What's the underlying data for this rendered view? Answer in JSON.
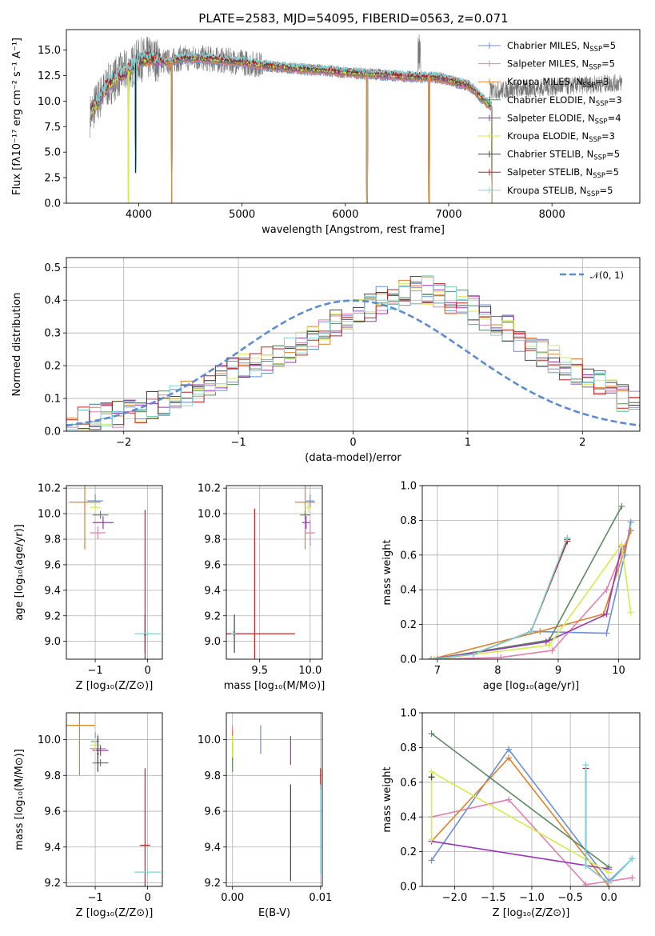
{
  "figure": {
    "title": "PLATE=2583, MJD=54095, FIBERID=0563, z=0.071"
  },
  "colors": {
    "chabrier_miles": "#6a8fd6",
    "salpeter_miles": "#e07fb0",
    "kroupa_miles": "#e08128",
    "chabrier_elodie": "#5a8a5e",
    "salpeter_elodie": "#9a35b8",
    "kroupa_elodie": "#d4ec4a",
    "chabrier_stelib": "#444444",
    "salpeter_stelib": "#c02020",
    "kroupa_stelib": "#7fd4d8",
    "normal": "#5b8bd6"
  },
  "chart_data": [
    {
      "id": "spectrum",
      "type": "line",
      "title": "PLATE=2583, MJD=54095, FIBERID=0563, z=0.071",
      "xlabel": "wavelength [Angstrom, rest frame]",
      "ylabel": "Flux [fλ10⁻¹⁷ erg cm⁻² s⁻¹ A⁻¹]",
      "xlim": [
        3300,
        8850
      ],
      "ylim": [
        0,
        17
      ],
      "xticks": [
        4000,
        5000,
        6000,
        7000,
        8000
      ],
      "yticks": [
        0.0,
        2.5,
        5.0,
        7.5,
        10.0,
        12.5,
        15.0
      ],
      "grid": false,
      "legend_position": "top-right",
      "legend": [
        "Chabrier MILES, N_SSP=5",
        "Salpeter MILES, N_SSP=5",
        "Kroupa MILES, N_SSP=3",
        "Chabrier ELODIE, N_SSP=3",
        "Salpeter ELODIE, N_SSP=4",
        "Kroupa ELODIE, N_SSP=3",
        "Chabrier STELIB, N_SSP=5",
        "Salpeter STELIB, N_SSP=5",
        "Kroupa STELIB, N_SSP=5"
      ],
      "continuum": {
        "x": [
          3500,
          3600,
          3700,
          3800,
          3900,
          4000,
          4100,
          4200,
          4300,
          4400,
          4600,
          4800,
          5000,
          5200,
          5500,
          5800,
          6000,
          6300,
          6600,
          6900,
          7200,
          7400
        ],
        "y": [
          8.0,
          10.0,
          11.5,
          12.5,
          13.0,
          14.0,
          14.2,
          14.0,
          13.8,
          14.2,
          14.2,
          14.0,
          13.8,
          13.5,
          13.2,
          13.0,
          12.8,
          12.6,
          12.4,
          12.3,
          11.5,
          9.5
        ]
      },
      "observed_extent": [
        3530,
        8680
      ],
      "dips": [
        {
          "x": 3900,
          "y": 0.0
        },
        {
          "x": 3970,
          "y": 3.0
        },
        {
          "x": 4320,
          "y": 0.0
        },
        {
          "x": 6210,
          "y": 0.0
        },
        {
          "x": 6810,
          "y": 0.0
        },
        {
          "x": 7420,
          "y": 0.0
        }
      ]
    },
    {
      "id": "residuals",
      "type": "bar",
      "xlabel": "(data-model)/error",
      "ylabel": "Normed distribution",
      "xlim": [
        -2.5,
        2.5
      ],
      "ylim": [
        0,
        0.53
      ],
      "xticks": [
        -2,
        -1,
        0,
        1,
        2
      ],
      "yticks": [
        0.0,
        0.1,
        0.2,
        0.3,
        0.4,
        0.5
      ],
      "grid": true,
      "legend_position": "top-right",
      "legend": [
        "9%(0,1)"
      ],
      "bin_width": 0.1,
      "bin_start": -2.5,
      "series_base": [
        0.03,
        0.03,
        0.04,
        0.05,
        0.05,
        0.06,
        0.07,
        0.08,
        0.09,
        0.1,
        0.12,
        0.13,
        0.14,
        0.16,
        0.18,
        0.2,
        0.21,
        0.22,
        0.23,
        0.25,
        0.27,
        0.29,
        0.31,
        0.33,
        0.35,
        0.37,
        0.38,
        0.4,
        0.41,
        0.42,
        0.43,
        0.43,
        0.42,
        0.4,
        0.39,
        0.37,
        0.35,
        0.33,
        0.31,
        0.28,
        0.26,
        0.24,
        0.22,
        0.2,
        0.18,
        0.16,
        0.14,
        0.12,
        0.1,
        0.09
      ]
    },
    {
      "id": "age_vs_z",
      "type": "scatter",
      "xlabel": "Z [log₁₀(Z/Z⊙)]",
      "ylabel": "age [log₁₀(age/yr)]",
      "xlim": [
        -1.55,
        0.28
      ],
      "ylim": [
        8.86,
        10.22
      ],
      "xticks": [
        -1,
        0
      ],
      "yticks": [
        9.0,
        9.2,
        9.4,
        9.6,
        9.8,
        10.0,
        10.2
      ],
      "grid": true,
      "crosses": [
        {
          "s": "chabrier_miles",
          "x": -1.0,
          "y": 10.1,
          "xe": 0.15,
          "ye": 0.05
        },
        {
          "s": "salpeter_miles",
          "x": -0.95,
          "y": 9.85,
          "xe": 0.15,
          "ye": 0.05
        },
        {
          "s": "kroupa_miles",
          "x": -1.2,
          "y": 10.09,
          "xe": 0.3,
          "ye": 0.37
        },
        {
          "s": "chabrier_elodie",
          "x": -0.9,
          "y": 9.99,
          "xe": 0.15,
          "ye": 0.03
        },
        {
          "s": "salpeter_elodie",
          "x": -0.85,
          "y": 9.93,
          "xe": 0.2,
          "ye": 0.05
        },
        {
          "s": "kroupa_elodie",
          "x": -1.0,
          "y": 10.05,
          "xe": 0.1,
          "ye": 0.04
        },
        {
          "s": "chabrier_stelib",
          "x": -0.05,
          "y": 9.06,
          "xe": 0.05,
          "ye": 0.15
        },
        {
          "s": "salpeter_stelib",
          "x": -0.05,
          "y": 9.05,
          "xe": 0.02,
          "ye": 0.98
        },
        {
          "s": "kroupa_stelib",
          "x": 0.0,
          "y": 9.06,
          "xe": 0.25,
          "ye": 0.02
        }
      ]
    },
    {
      "id": "age_vs_mass",
      "type": "scatter",
      "xlabel": "mass [log₁₀(M/M⊙)]",
      "ylabel": "",
      "xlim": [
        9.17,
        10.12
      ],
      "ylim": [
        8.86,
        10.22
      ],
      "xticks": [
        9.5,
        10.0
      ],
      "yticks": [
        9.0,
        9.2,
        9.4,
        9.6,
        9.8,
        10.0,
        10.2
      ],
      "grid": true,
      "crosses": [
        {
          "s": "chabrier_miles",
          "x": 10.0,
          "y": 10.1,
          "xe": 0.04,
          "ye": 0.05
        },
        {
          "s": "salpeter_miles",
          "x": 10.0,
          "y": 9.85,
          "xe": 0.05,
          "ye": 0.1
        },
        {
          "s": "kroupa_miles",
          "x": 9.95,
          "y": 10.09,
          "xe": 0.1,
          "ye": 0.37
        },
        {
          "s": "chabrier_elodie",
          "x": 9.95,
          "y": 9.99,
          "xe": 0.05,
          "ye": 0.03
        },
        {
          "s": "salpeter_elodie",
          "x": 9.96,
          "y": 9.93,
          "xe": 0.04,
          "ye": 0.05
        },
        {
          "s": "kroupa_elodie",
          "x": 9.98,
          "y": 10.05,
          "xe": 0.03,
          "ye": 0.04
        },
        {
          "s": "chabrier_stelib",
          "x": 9.25,
          "y": 9.06,
          "xe": 0.02,
          "ye": 0.15
        },
        {
          "s": "salpeter_stelib",
          "x": 9.45,
          "y": 9.06,
          "xe": 0.4,
          "ye": 0.98
        },
        {
          "s": "kroupa_stelib",
          "x": 9.24,
          "y": 9.06,
          "xe": 0.02,
          "ye": 0.02
        }
      ]
    },
    {
      "id": "massweight_vs_age",
      "type": "line",
      "xlabel": "age [log₁₀(age/yr)]",
      "ylabel": "mass weight",
      "xlim": [
        6.75,
        10.35
      ],
      "ylim": [
        0,
        1.0
      ],
      "xticks": [
        7,
        8,
        9,
        10
      ],
      "yticks": [
        0.0,
        0.2,
        0.4,
        0.6,
        0.8,
        1.0
      ],
      "grid": true,
      "series": [
        {
          "s": "chabrier_miles",
          "x": [
            6.9,
            7.6,
            8.55,
            9.8,
            10.1,
            10.2
          ],
          "y": [
            0.0,
            0.03,
            0.16,
            0.15,
            0.6,
            0.79
          ]
        },
        {
          "s": "salpeter_miles",
          "x": [
            7.0,
            8.05,
            8.9,
            9.8,
            10.2
          ],
          "y": [
            0.0,
            0.01,
            0.05,
            0.4,
            0.74
          ]
        },
        {
          "s": "kroupa_miles",
          "x": [
            6.9,
            8.7,
            9.75,
            10.2
          ],
          "y": [
            0.0,
            0.16,
            0.26,
            0.74
          ]
        },
        {
          "s": "chabrier_elodie",
          "x": [
            6.9,
            8.85,
            10.05
          ],
          "y": [
            0.0,
            0.11,
            0.88
          ]
        },
        {
          "s": "salpeter_elodie",
          "x": [
            6.9,
            8.8,
            9.8,
            10.05
          ],
          "y": [
            0.0,
            0.1,
            0.26,
            0.65
          ]
        },
        {
          "s": "kroupa_elodie",
          "x": [
            6.95,
            8.85,
            10.05,
            10.2
          ],
          "y": [
            0.0,
            0.08,
            0.66,
            0.27
          ]
        },
        {
          "s": "chabrier_stelib",
          "x": [
            6.9,
            7.6,
            8.55,
            9.15
          ],
          "y": [
            0.0,
            0.03,
            0.16,
            0.69
          ]
        },
        {
          "s": "salpeter_stelib",
          "x": [
            6.9,
            7.6,
            8.55,
            9.15
          ],
          "y": [
            0.0,
            0.03,
            0.16,
            0.68
          ]
        },
        {
          "s": "kroupa_stelib",
          "x": [
            6.9,
            7.6,
            8.55,
            9.15
          ],
          "y": [
            0.0,
            0.03,
            0.16,
            0.7
          ]
        }
      ]
    },
    {
      "id": "mass_vs_z",
      "type": "scatter",
      "xlabel": "Z [log₁₀(Z/Z⊙)]",
      "ylabel": "mass [log₁₀(M/M⊙)]",
      "xlim": [
        -1.55,
        0.28
      ],
      "ylim": [
        9.18,
        10.15
      ],
      "xticks": [
        -1,
        0
      ],
      "yticks": [
        9.2,
        9.4,
        9.6,
        9.8,
        10.0
      ],
      "grid": true,
      "crosses": [
        {
          "s": "chabrier_miles",
          "x": -1.0,
          "y": 9.99,
          "xe": 0.08,
          "ye": 0.05
        },
        {
          "s": "salpeter_miles",
          "x": -0.95,
          "y": 9.95,
          "xe": 0.15,
          "ye": 0.08
        },
        {
          "s": "kroupa_miles",
          "x": -1.3,
          "y": 10.08,
          "xe": 0.3,
          "ye": 0.28
        },
        {
          "s": "chabrier_elodie",
          "x": -0.9,
          "y": 9.87,
          "xe": 0.15,
          "ye": 0.02
        },
        {
          "s": "salpeter_elodie",
          "x": -0.9,
          "y": 9.94,
          "xe": 0.15,
          "ye": 0.03
        },
        {
          "s": "kroupa_elodie",
          "x": -1.0,
          "y": 9.97,
          "xe": 0.1,
          "ye": 0.04
        },
        {
          "s": "chabrier_stelib",
          "x": -0.95,
          "y": 9.92,
          "xe": 0.02,
          "ye": 0.1
        },
        {
          "s": "salpeter_stelib",
          "x": -0.05,
          "y": 9.41,
          "xe": 0.1,
          "ye": 0.43
        },
        {
          "s": "kroupa_stelib",
          "x": 0.0,
          "y": 9.26,
          "xe": 0.25,
          "ye": 0.02
        }
      ]
    },
    {
      "id": "mass_vs_ebv",
      "type": "scatter",
      "xlabel": "E(B-V)",
      "ylabel": "",
      "xlim": [
        -0.0007,
        0.0102
      ],
      "ylim": [
        9.18,
        10.15
      ],
      "xticks": [
        0.0,
        0.01
      ],
      "yticks": [
        9.2,
        9.4,
        9.6,
        9.8,
        10.0
      ],
      "grid": true,
      "crosses": [
        {
          "s": "chabrier_miles",
          "x": 0.0032,
          "y": 10.0,
          "xe": 0.0,
          "ye": 0.08
        },
        {
          "s": "salpeter_miles",
          "x": 0.0,
          "y": 9.98,
          "xe": 0.0,
          "ye": 0.1
        },
        {
          "s": "kroupa_miles",
          "x": 0.0,
          "y": 10.0,
          "xe": 0.0,
          "ye": 0.05
        },
        {
          "s": "chabrier_elodie",
          "x": 0.0,
          "y": 9.9,
          "xe": 0.0,
          "ye": 0.08
        },
        {
          "s": "salpeter_elodie",
          "x": 0.0066,
          "y": 9.94,
          "xe": 0.0,
          "ye": 0.08
        },
        {
          "s": "kroupa_elodie",
          "x": 0.0,
          "y": 9.96,
          "xe": 0.0,
          "ye": 0.06
        },
        {
          "s": "chabrier_stelib",
          "x": 0.0066,
          "y": 9.48,
          "xe": 0.0,
          "ye": 0.27
        },
        {
          "s": "salpeter_stelib",
          "x": 0.01,
          "y": 9.78,
          "xe": 0.0,
          "ye": 0.06
        },
        {
          "s": "kroupa_stelib",
          "x": 0.01,
          "y": 9.5,
          "xe": 0.0,
          "ye": 0.25
        }
      ]
    },
    {
      "id": "massweight_vs_z",
      "type": "line",
      "xlabel": "Z [log₁₀(Z/Z⊙)]",
      "ylabel": "mass weight",
      "xlim": [
        -2.42,
        0.4
      ],
      "ylim": [
        0,
        1.0
      ],
      "xticks": [
        -2.0,
        -1.5,
        -1.0,
        -0.5,
        0.0
      ],
      "yticks": [
        0.0,
        0.2,
        0.4,
        0.6,
        0.8,
        1.0
      ],
      "grid": true,
      "series": [
        {
          "s": "chabrier_miles",
          "x": [
            -2.3,
            -1.3,
            0.0,
            0.3
          ],
          "y": [
            0.15,
            0.79,
            0.03,
            0.16
          ]
        },
        {
          "s": "salpeter_miles",
          "x": [
            -2.3,
            -1.3,
            -0.3,
            0.3
          ],
          "y": [
            0.4,
            0.5,
            0.01,
            0.05
          ]
        },
        {
          "s": "kroupa_miles",
          "x": [
            -2.3,
            -1.3,
            0.0
          ],
          "y": [
            0.26,
            0.74,
            0.0
          ]
        },
        {
          "s": "chabrier_elodie",
          "x": [
            -2.3,
            0.0
          ],
          "y": [
            0.88,
            0.11
          ]
        },
        {
          "s": "salpeter_elodie",
          "x": [
            -2.3,
            0.0
          ],
          "y": [
            0.26,
            0.1
          ]
        },
        {
          "s": "kroupa_elodie",
          "x": [
            -2.3,
            -2.3,
            0.0
          ],
          "y": [
            0.27,
            0.66,
            0.08
          ]
        },
        {
          "s": "chabrier_stelib",
          "x": [
            -2.3,
            -2.3
          ],
          "y": [
            0.63,
            0.63
          ]
        },
        {
          "s": "salpeter_stelib",
          "x": [
            -0.3,
            -0.3,
            0.0
          ],
          "y": [
            0.68,
            0.12,
            0.02
          ]
        },
        {
          "s": "kroupa_stelib",
          "x": [
            -0.3,
            -0.3,
            0.0,
            0.3
          ],
          "y": [
            0.7,
            0.12,
            0.02,
            0.16
          ]
        }
      ]
    }
  ]
}
